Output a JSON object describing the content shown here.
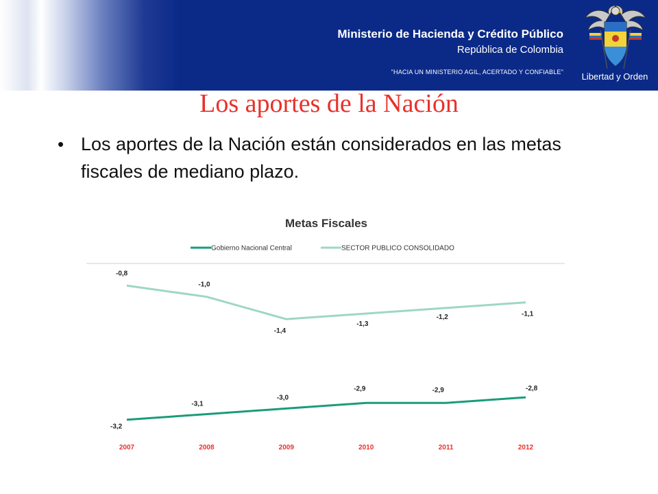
{
  "header": {
    "ministry": "Ministerio de Hacienda y Crédito Público",
    "country": "República de Colombia",
    "motto": "\"HACIA UN MINISTERIO AGIL, ACERTADO Y CONFIABLE\"",
    "emblem_label": "Libertad y Orden",
    "emblem_icon": "colombia-coat-of-arms-icon"
  },
  "slide": {
    "title": "Los aportes de la Nación",
    "bullet": "Los aportes de la Nación están considerados en las metas fiscales de mediano plazo."
  },
  "colors": {
    "title": "#e8312a",
    "header_bg": "#0b2a88",
    "series_gnc": "#1a9c78",
    "series_spc": "#9ed7c3",
    "tick_labels": "#e8312a"
  },
  "chart_data": {
    "type": "line",
    "title": "Metas Fiscales",
    "categories": [
      "2007",
      "2008",
      "2009",
      "2010",
      "2011",
      "2012"
    ],
    "series": [
      {
        "name": "Gobierno Nacional Central",
        "values": [
          -3.2,
          -3.1,
          -3.0,
          -2.9,
          -2.9,
          -2.8
        ],
        "labels": [
          "-3,2",
          "-3,1",
          "-3,0",
          "-2,9",
          "-2,9",
          "-2,8"
        ]
      },
      {
        "name": "SECTOR PUBLICO CONSOLIDADO",
        "values": [
          -0.8,
          -1.0,
          -1.4,
          -1.3,
          -1.2,
          -1.1
        ],
        "labels": [
          "-0,8",
          "-1,0",
          "-1,4",
          "-1,3",
          "-1,2",
          "-1,1"
        ]
      }
    ],
    "legend_position": "top",
    "grid": false,
    "xlabel": "",
    "ylabel": "",
    "ylim": [
      -3.4,
      -0.6
    ]
  }
}
